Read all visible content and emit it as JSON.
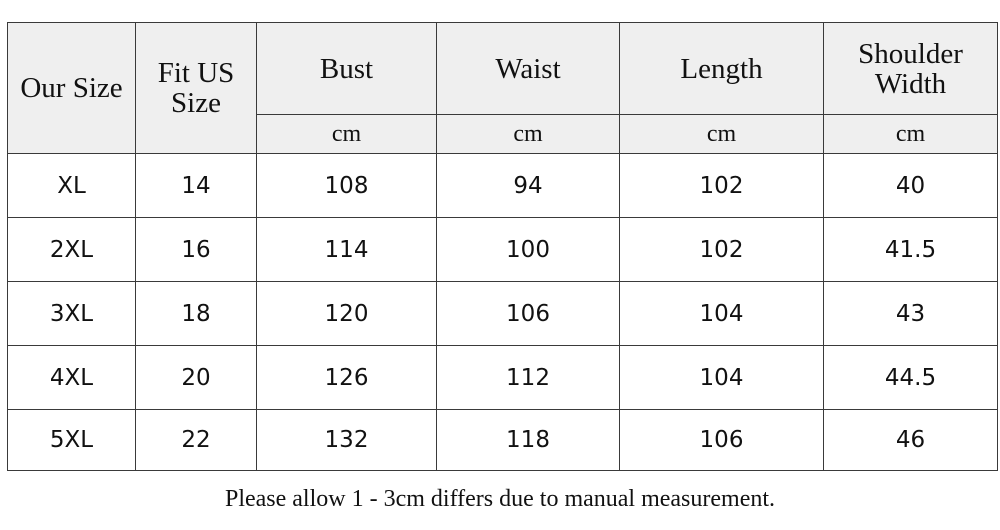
{
  "table": {
    "headers": {
      "our_size": "Our Size",
      "fit_us_size_line1": "Fit US",
      "fit_us_size_line2": "Size",
      "bust": "Bust",
      "waist": "Waist",
      "length": "Length",
      "shoulder_line1": "Shoulder",
      "shoulder_line2": "Width"
    },
    "units": {
      "bust": "cm",
      "waist": "cm",
      "length": "cm",
      "shoulder": "cm"
    },
    "rows": [
      {
        "size": "XL",
        "us": "14",
        "bust": "108",
        "waist": "94",
        "length": "102",
        "shoulder": "40"
      },
      {
        "size": "2XL",
        "us": "16",
        "bust": "114",
        "waist": "100",
        "length": "102",
        "shoulder": "41.5"
      },
      {
        "size": "3XL",
        "us": "18",
        "bust": "120",
        "waist": "106",
        "length": "104",
        "shoulder": "43"
      },
      {
        "size": "4XL",
        "us": "20",
        "bust": "126",
        "waist": "112",
        "length": "104",
        "shoulder": "44.5"
      },
      {
        "size": "5XL",
        "us": "22",
        "bust": "132",
        "waist": "118",
        "length": "106",
        "shoulder": "46"
      }
    ]
  },
  "note": "Please allow 1 - 3cm differs due to manual measurement."
}
